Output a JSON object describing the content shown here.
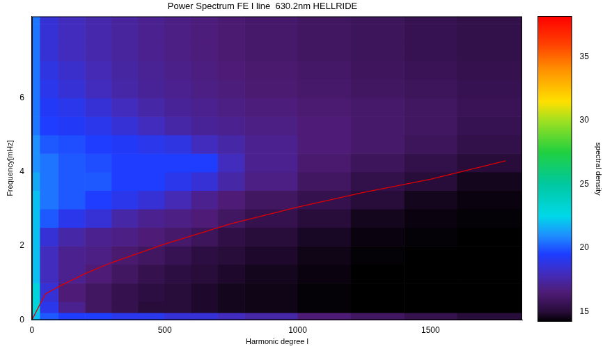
{
  "chart_data": {
    "type": "heatmap",
    "title": "Power Spectrum FE I line  630.2nm HELLRIDE",
    "x_label": "Harmonic degree l",
    "y_label": "Frequency[mHz]",
    "xlim": [
      0,
      1845
    ],
    "xticks": [
      0,
      500,
      1000,
      1500
    ],
    "ylim": [
      0,
      8.2
    ],
    "yticks": [
      0,
      2,
      4,
      6
    ],
    "grid": false,
    "x_edges": [
      0,
      30,
      100,
      200,
      300,
      400,
      500,
      600,
      700,
      800,
      1000,
      1200,
      1400,
      1600,
      1845
    ],
    "y_edges": [
      0,
      0.2,
      0.5,
      1,
      1.5,
      2,
      2.5,
      3,
      3.5,
      4,
      4.5,
      5,
      5.5,
      6,
      6.5,
      7,
      7.5,
      8,
      8.2
    ],
    "cells": [
      [
        22,
        20,
        19.5,
        19.5,
        19,
        19,
        18.5,
        18.5,
        18,
        17.5,
        16.5,
        16,
        15.5,
        15
      ],
      [
        23,
        19,
        17,
        16,
        15.5,
        15,
        15,
        14.8,
        14.6,
        14.5,
        14.3,
        14.2,
        14.1,
        14
      ],
      [
        23,
        18.5,
        16.5,
        16,
        15.5,
        15.2,
        15,
        14.8,
        14.6,
        14.5,
        14.3,
        14.2,
        14.1,
        14
      ],
      [
        22,
        18,
        17,
        16.5,
        16,
        15.5,
        15.2,
        15,
        14.8,
        14.6,
        14.4,
        14.2,
        14.1,
        14
      ],
      [
        22,
        18,
        17,
        16.8,
        16.3,
        16,
        15.6,
        15.2,
        15,
        14.8,
        14.5,
        14.3,
        14.2,
        14.1
      ],
      [
        22,
        18.5,
        17.5,
        17,
        16.8,
        16.5,
        16.2,
        15.8,
        15.3,
        15,
        14.7,
        14.4,
        14.3,
        14.2
      ],
      [
        22,
        20,
        19,
        18.5,
        17.5,
        17,
        16.8,
        16.5,
        16,
        15.5,
        15,
        14.6,
        14.4,
        14.3
      ],
      [
        22,
        20.5,
        20,
        19.5,
        19,
        18.5,
        17.8,
        17,
        16.5,
        16,
        15.5,
        15,
        14.6,
        14.4
      ],
      [
        21.5,
        20.5,
        20,
        20,
        19.5,
        19.5,
        19,
        18.5,
        17.5,
        16.8,
        16,
        15.4,
        15,
        14.6
      ],
      [
        21,
        20.5,
        20,
        19.8,
        19.5,
        19.5,
        19.5,
        19.5,
        18,
        17,
        16.3,
        15.8,
        15.4,
        15
      ],
      [
        21,
        20,
        19.8,
        19.5,
        19.3,
        19,
        18.8,
        18,
        17.5,
        17,
        16.5,
        16.2,
        15.8,
        15.4
      ],
      [
        20.5,
        19.5,
        19.3,
        19,
        18.5,
        18,
        17.5,
        17.2,
        17,
        16.8,
        16.5,
        16.2,
        16,
        15.6
      ],
      [
        20.5,
        19.3,
        19,
        18.5,
        18,
        17.5,
        17.2,
        17,
        16.8,
        16.6,
        16.4,
        16.2,
        16,
        15.7
      ],
      [
        20.5,
        19,
        18.5,
        18,
        17.5,
        17.2,
        17,
        16.8,
        16.6,
        16.4,
        16.2,
        16,
        15.8,
        15.6
      ],
      [
        20.5,
        18.8,
        18.3,
        17.8,
        17.4,
        17.1,
        16.9,
        16.7,
        16.5,
        16.3,
        16.1,
        15.9,
        15.7,
        15.5
      ],
      [
        20.5,
        18.5,
        18,
        17.6,
        17.3,
        17,
        16.8,
        16.6,
        16.4,
        16.2,
        16,
        15.8,
        15.6,
        15.4
      ],
      [
        20.5,
        18.5,
        18,
        17.6,
        17.3,
        17,
        16.8,
        16.6,
        16.4,
        16.2,
        16,
        15.8,
        15.6,
        15.4
      ],
      [
        20.5,
        18.5,
        18,
        17.6,
        17.3,
        17,
        16.8,
        16.6,
        16.4,
        16.2,
        16,
        15.8,
        15.6,
        15.4
      ]
    ],
    "colorbar": {
      "label": "spectral density",
      "range": [
        14.2,
        38.2
      ],
      "ticks": [
        15,
        20,
        25,
        30,
        35
      ]
    },
    "series": [
      {
        "type": "line",
        "color": "#e00000",
        "x": [
          0,
          50,
          100,
          200,
          300,
          500,
          750,
          1000,
          1250,
          1500,
          1783
        ],
        "values": [
          0,
          0.7,
          0.9,
          1.25,
          1.55,
          2.05,
          2.6,
          3.05,
          3.45,
          3.8,
          4.3
        ]
      }
    ]
  }
}
